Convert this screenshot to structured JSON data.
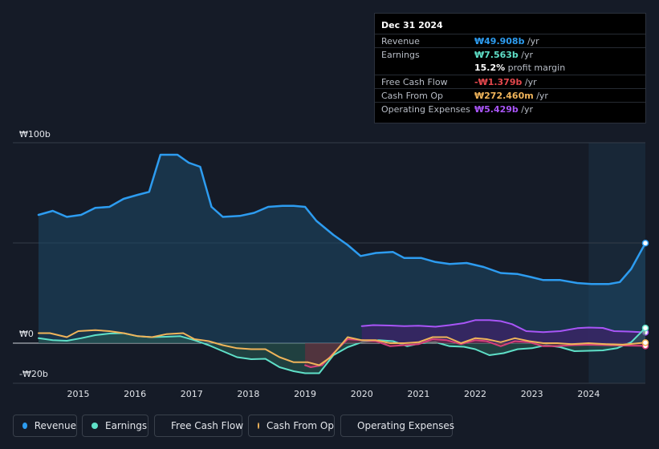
{
  "tooltip": {
    "date": "Dec 31 2024",
    "rows": [
      {
        "label": "Revenue",
        "value": "₩49.908b",
        "unit": "/yr",
        "color": "#2d9cf0"
      },
      {
        "label": "Earnings",
        "value": "₩7.563b",
        "unit": "/yr",
        "color": "#5fe0c8"
      },
      {
        "label": "",
        "value": "15.2%",
        "unit": "profit margin",
        "color": "#ffffff"
      },
      {
        "label": "Free Cash Flow",
        "value": "-₩1.379b",
        "unit": "/yr",
        "color": "#e5484d"
      },
      {
        "label": "Cash From Op",
        "value": "₩272.460m",
        "unit": "/yr",
        "color": "#f0b45a"
      },
      {
        "label": "Operating Expenses",
        "value": "₩5.429b",
        "unit": "/yr",
        "color": "#a855f7"
      }
    ]
  },
  "legend": [
    {
      "label": "Revenue",
      "color": "#2d9cf0"
    },
    {
      "label": "Earnings",
      "color": "#5fe0c8"
    },
    {
      "label": "Free Cash Flow",
      "color": "#d6407a"
    },
    {
      "label": "Cash From Op",
      "color": "#f0b45a"
    },
    {
      "label": "Operating Expenses",
      "color": "#a855f7"
    }
  ],
  "chart_data": {
    "type": "area",
    "ylabels": {
      "top": "₩100b",
      "zero": "₩0",
      "bottom": "-₩20b"
    },
    "ylim": [
      -20,
      100
    ],
    "xlim": [
      2014.3,
      2025.0
    ],
    "xticks": [
      "2015",
      "2016",
      "2017",
      "2018",
      "2019",
      "2020",
      "2021",
      "2022",
      "2023",
      "2024"
    ],
    "highlight_start": 2024.0,
    "series": [
      {
        "name": "Revenue",
        "color": "#2d9cf0",
        "fill": true,
        "points": [
          [
            2014.3,
            64
          ],
          [
            2014.55,
            66
          ],
          [
            2014.8,
            63
          ],
          [
            2015.05,
            64
          ],
          [
            2015.3,
            67.5
          ],
          [
            2015.55,
            68
          ],
          [
            2015.8,
            72
          ],
          [
            2016.05,
            74
          ],
          [
            2016.25,
            75.5
          ],
          [
            2016.45,
            94
          ],
          [
            2016.75,
            94
          ],
          [
            2016.95,
            90
          ],
          [
            2017.15,
            88
          ],
          [
            2017.35,
            68
          ],
          [
            2017.55,
            63
          ],
          [
            2017.85,
            63.5
          ],
          [
            2018.1,
            65
          ],
          [
            2018.35,
            68
          ],
          [
            2018.6,
            68.5
          ],
          [
            2018.8,
            68.5
          ],
          [
            2019.0,
            68
          ],
          [
            2019.2,
            61
          ],
          [
            2019.5,
            54
          ],
          [
            2019.75,
            49
          ],
          [
            2019.98,
            43.5
          ],
          [
            2020.25,
            45
          ],
          [
            2020.55,
            45.5
          ],
          [
            2020.75,
            42.5
          ],
          [
            2021.05,
            42.5
          ],
          [
            2021.3,
            40.5
          ],
          [
            2021.55,
            39.5
          ],
          [
            2021.85,
            40
          ],
          [
            2022.15,
            38
          ],
          [
            2022.45,
            35
          ],
          [
            2022.75,
            34.5
          ],
          [
            2022.98,
            33
          ],
          [
            2023.2,
            31.5
          ],
          [
            2023.5,
            31.5
          ],
          [
            2023.8,
            30
          ],
          [
            2024.05,
            29.5
          ],
          [
            2024.35,
            29.5
          ],
          [
            2024.55,
            30.5
          ],
          [
            2024.75,
            37
          ],
          [
            2025.0,
            49.9
          ]
        ]
      },
      {
        "name": "Operating Expenses",
        "color": "#a855f7",
        "fill": true,
        "points": [
          [
            2020.0,
            8.5
          ],
          [
            2020.2,
            9
          ],
          [
            2020.5,
            8.8
          ],
          [
            2020.75,
            8.5
          ],
          [
            2021.0,
            8.7
          ],
          [
            2021.3,
            8.2
          ],
          [
            2021.55,
            9
          ],
          [
            2021.8,
            10
          ],
          [
            2022.0,
            11.5
          ],
          [
            2022.25,
            11.5
          ],
          [
            2022.45,
            11
          ],
          [
            2022.65,
            9.5
          ],
          [
            2022.9,
            6
          ],
          [
            2023.2,
            5.5
          ],
          [
            2023.5,
            6
          ],
          [
            2023.8,
            7.5
          ],
          [
            2024.0,
            7.8
          ],
          [
            2024.25,
            7.6
          ],
          [
            2024.45,
            6
          ],
          [
            2024.7,
            5.8
          ],
          [
            2025.0,
            5.4
          ]
        ]
      },
      {
        "name": "Earnings",
        "color": "#5fe0c8",
        "fill": true,
        "points": [
          [
            2014.3,
            2.5
          ],
          [
            2014.55,
            1.5
          ],
          [
            2014.8,
            1.2
          ],
          [
            2015.05,
            2.5
          ],
          [
            2015.3,
            4
          ],
          [
            2015.55,
            4.8
          ],
          [
            2015.8,
            5
          ],
          [
            2016.05,
            3.5
          ],
          [
            2016.3,
            3
          ],
          [
            2016.55,
            3.2
          ],
          [
            2016.8,
            3.5
          ],
          [
            2017.05,
            1.5
          ],
          [
            2017.3,
            -1
          ],
          [
            2017.55,
            -4
          ],
          [
            2017.8,
            -7
          ],
          [
            2018.05,
            -8
          ],
          [
            2018.3,
            -7.8
          ],
          [
            2018.55,
            -12
          ],
          [
            2018.8,
            -14
          ],
          [
            2019.0,
            -15
          ],
          [
            2019.25,
            -15
          ],
          [
            2019.5,
            -6
          ],
          [
            2019.75,
            -2
          ],
          [
            2020.0,
            0.5
          ],
          [
            2020.3,
            1.5
          ],
          [
            2020.55,
            1
          ],
          [
            2020.8,
            -1.5
          ],
          [
            2021.05,
            0
          ],
          [
            2021.3,
            0.5
          ],
          [
            2021.55,
            -1.5
          ],
          [
            2021.8,
            -1.8
          ],
          [
            2022.0,
            -3
          ],
          [
            2022.25,
            -6
          ],
          [
            2022.5,
            -5
          ],
          [
            2022.75,
            -3
          ],
          [
            2023.0,
            -2.5
          ],
          [
            2023.25,
            -1
          ],
          [
            2023.5,
            -2
          ],
          [
            2023.75,
            -4
          ],
          [
            2024.0,
            -3.8
          ],
          [
            2024.25,
            -3.6
          ],
          [
            2024.5,
            -2.5
          ],
          [
            2024.75,
            0.5
          ],
          [
            2025.0,
            7.56
          ]
        ]
      },
      {
        "name": "Free Cash Flow",
        "color": "#d6407a",
        "fill": true,
        "points": [
          [
            2019.0,
            -11
          ],
          [
            2019.1,
            -12
          ],
          [
            2019.3,
            -11
          ],
          [
            2019.5,
            -5
          ],
          [
            2019.75,
            2
          ],
          [
            2020.0,
            1.5
          ],
          [
            2020.25,
            1
          ],
          [
            2020.5,
            -1.5
          ],
          [
            2020.75,
            -1
          ],
          [
            2021.0,
            -0.5
          ],
          [
            2021.25,
            2
          ],
          [
            2021.5,
            1.5
          ],
          [
            2021.75,
            -0.5
          ],
          [
            2022.0,
            1.5
          ],
          [
            2022.2,
            1
          ],
          [
            2022.45,
            -1.5
          ],
          [
            2022.7,
            1
          ],
          [
            2022.95,
            0.5
          ],
          [
            2023.2,
            -1.5
          ],
          [
            2023.45,
            -1.5
          ],
          [
            2023.7,
            -1
          ],
          [
            2024.0,
            -0.8
          ],
          [
            2024.3,
            -1
          ],
          [
            2024.6,
            -1.2
          ],
          [
            2025.0,
            -1.38
          ]
        ]
      },
      {
        "name": "Cash From Op",
        "color": "#f0b45a",
        "fill": false,
        "points": [
          [
            2014.3,
            5
          ],
          [
            2014.5,
            5
          ],
          [
            2014.8,
            3
          ],
          [
            2015.0,
            6
          ],
          [
            2015.3,
            6.5
          ],
          [
            2015.55,
            6
          ],
          [
            2015.8,
            5
          ],
          [
            2016.05,
            3.5
          ],
          [
            2016.3,
            3
          ],
          [
            2016.55,
            4.5
          ],
          [
            2016.85,
            5
          ],
          [
            2017.05,
            2
          ],
          [
            2017.3,
            1
          ],
          [
            2017.55,
            -1
          ],
          [
            2017.8,
            -2.5
          ],
          [
            2018.05,
            -3
          ],
          [
            2018.3,
            -3
          ],
          [
            2018.55,
            -7
          ],
          [
            2018.8,
            -9.5
          ],
          [
            2019.05,
            -9.5
          ],
          [
            2019.25,
            -11
          ],
          [
            2019.45,
            -7
          ],
          [
            2019.75,
            3
          ],
          [
            2020.0,
            1.5
          ],
          [
            2020.25,
            1.5
          ],
          [
            2020.5,
            0
          ],
          [
            2020.75,
            0
          ],
          [
            2021.0,
            0.5
          ],
          [
            2021.25,
            3
          ],
          [
            2021.5,
            3
          ],
          [
            2021.75,
            0
          ],
          [
            2022.0,
            2.5
          ],
          [
            2022.2,
            2
          ],
          [
            2022.45,
            0.5
          ],
          [
            2022.7,
            2.5
          ],
          [
            2022.95,
            1
          ],
          [
            2023.2,
            0
          ],
          [
            2023.45,
            0
          ],
          [
            2023.7,
            -0.5
          ],
          [
            2024.0,
            0
          ],
          [
            2024.3,
            -0.5
          ],
          [
            2024.6,
            -0.8
          ],
          [
            2025.0,
            0.27
          ]
        ]
      }
    ]
  }
}
